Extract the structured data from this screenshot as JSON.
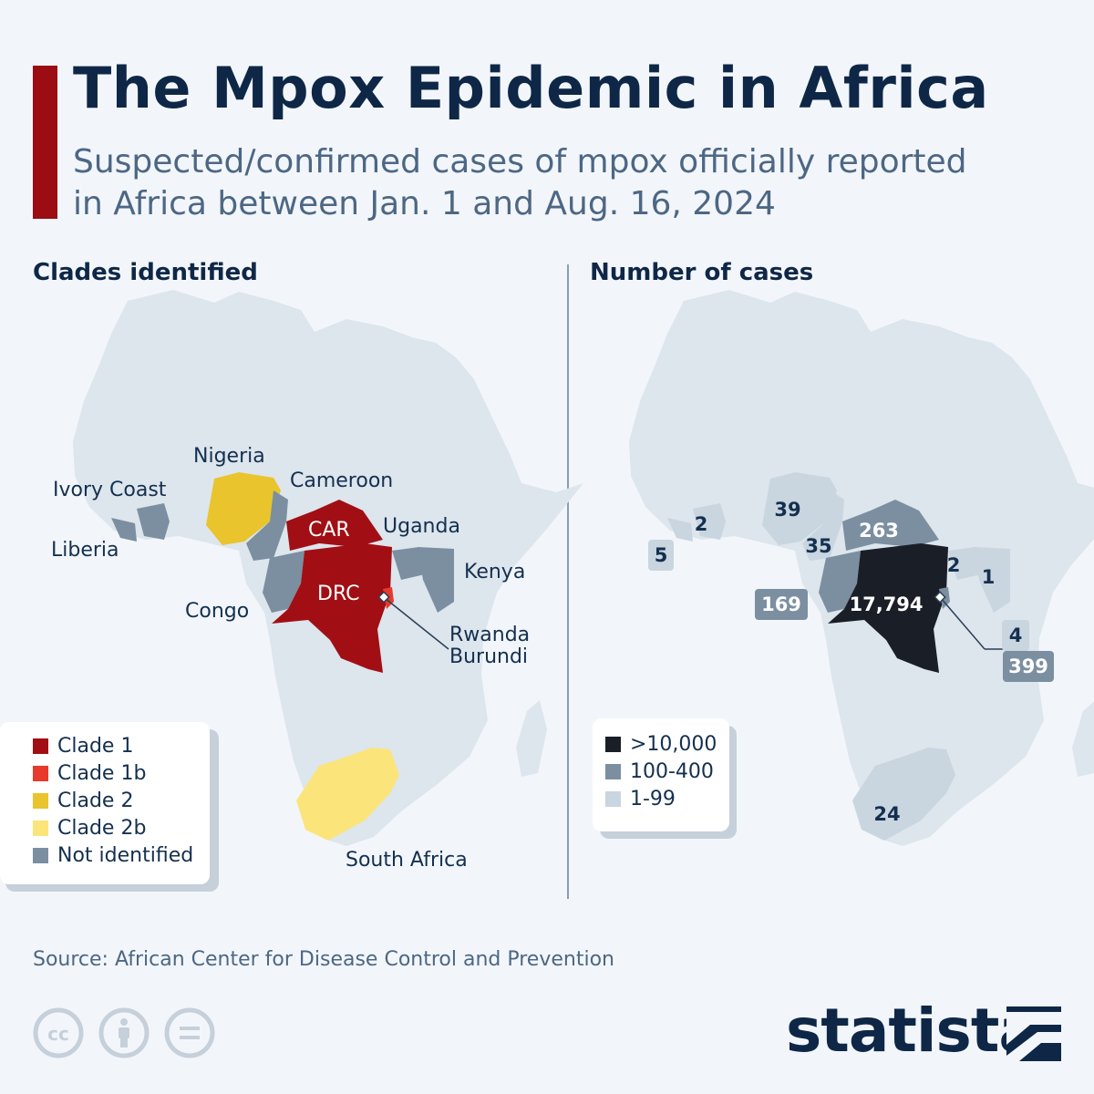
{
  "header": {
    "title": "The Mpox Epidemic in Africa",
    "subtitle_line1": "Suspected/confirmed cases of mpox officially reported",
    "subtitle_line2": "in Africa between Jan. 1 and Aug. 16, 2024",
    "accent_color": "#9b0d13"
  },
  "left_map": {
    "heading": "Clades identified",
    "labels": {
      "nigeria": "Nigeria",
      "ivory_coast": "Ivory Coast",
      "cameroon": "Cameroon",
      "car": "CAR",
      "uganda": "Uganda",
      "liberia": "Liberia",
      "kenya": "Kenya",
      "drc": "DRC",
      "congo": "Congo",
      "rwanda": "Rwanda",
      "burundi": "Burundi",
      "south_africa": "South Africa"
    },
    "legend": [
      {
        "label": "Clade 1",
        "color": "#a10f14"
      },
      {
        "label": "Clade 1b",
        "color": "#e8392a"
      },
      {
        "label": "Clade 2",
        "color": "#e9c42c"
      },
      {
        "label": "Clade 2b",
        "color": "#fbe57a"
      },
      {
        "label": "Not identified",
        "color": "#7b8fa1"
      }
    ],
    "base_color": "#dde5ed"
  },
  "right_map": {
    "heading": "Number of cases",
    "cases": {
      "nigeria": "39",
      "ivory_coast": "2",
      "liberia": "5",
      "cameroon": "35",
      "car": "263",
      "congo": "169",
      "drc": "17,794",
      "uganda": "2",
      "kenya": "1",
      "rwanda": "4",
      "burundi": "399",
      "south_africa": "24"
    },
    "legend": [
      {
        "label": ">10,000",
        "color": "#1a1f27"
      },
      {
        "label": "100-400",
        "color": "#7b8fa1"
      },
      {
        "label": "1-99",
        "color": "#c9d5df"
      }
    ]
  },
  "footer": {
    "source": "Source: African Center for Disease Control and Prevention",
    "brand": "statista",
    "license_icons": [
      "cc-icon",
      "attribution-icon",
      "no-derivatives-icon"
    ]
  }
}
